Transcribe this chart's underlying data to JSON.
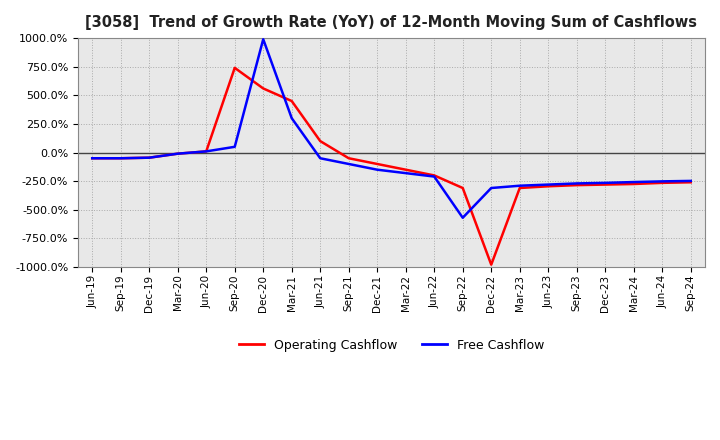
{
  "title": "[3058]  Trend of Growth Rate (YoY) of 12-Month Moving Sum of Cashflows",
  "ylim": [
    -1000,
    1000
  ],
  "yticks": [
    -1000,
    -750,
    -500,
    -250,
    0,
    250,
    500,
    750,
    1000
  ],
  "background_color": "#ffffff",
  "plot_bg_color": "#e8e8e8",
  "grid_color": "#aaaaaa",
  "operating_color": "#ff0000",
  "free_color": "#0000ff",
  "x_labels": [
    "Jun-19",
    "Sep-19",
    "Dec-19",
    "Mar-20",
    "Jun-20",
    "Sep-20",
    "Dec-20",
    "Mar-21",
    "Jun-21",
    "Sep-21",
    "Dec-21",
    "Mar-22",
    "Jun-22",
    "Sep-22",
    "Dec-22",
    "Mar-23",
    "Jun-23",
    "Sep-23",
    "Dec-23",
    "Mar-24",
    "Jun-24",
    "Sep-24"
  ],
  "operating_cashflow": [
    -50,
    -50,
    -45,
    -10,
    10,
    740,
    560,
    450,
    100,
    -50,
    -100,
    -150,
    -200,
    -310,
    -980,
    -310,
    -295,
    -285,
    -280,
    -275,
    -265,
    -260
  ],
  "free_cashflow": [
    -50,
    -50,
    -45,
    -10,
    10,
    50,
    990,
    300,
    -50,
    -100,
    -150,
    -180,
    -210,
    -570,
    -310,
    -290,
    -280,
    -270,
    -265,
    -258,
    -252,
    -248
  ]
}
